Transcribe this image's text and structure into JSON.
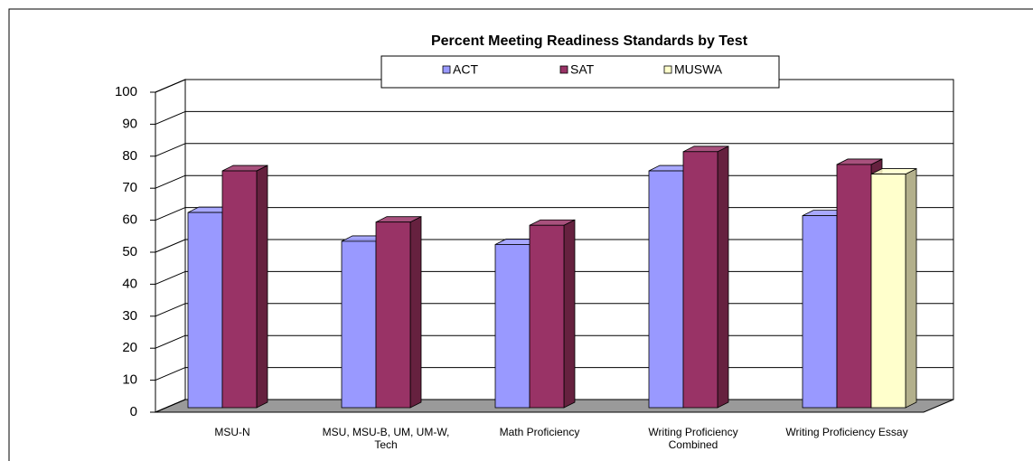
{
  "chart_data": {
    "type": "bar3d",
    "title": "Percent Meeting Readiness Standards by Test",
    "categories": [
      "MSU-N",
      "MSU, MSU-B, UM, UM-W, Tech",
      "Math Proficiency",
      "Writing Proficiency Combined",
      "Writing Proficiency Essay"
    ],
    "series": [
      {
        "name": "ACT",
        "color": "#9999ff",
        "side": "#6b6bcc",
        "values": [
          61,
          52,
          51,
          74,
          60
        ]
      },
      {
        "name": "SAT",
        "color": "#993366",
        "side": "#66213f",
        "values": [
          74,
          58,
          57,
          80,
          76
        ]
      },
      {
        "name": "MUSWA",
        "color": "#ffffcc",
        "side": "#b3b08c",
        "values": [
          null,
          null,
          null,
          null,
          73
        ]
      }
    ],
    "ylim": [
      0,
      100
    ],
    "yticks": [
      0,
      10,
      20,
      30,
      40,
      50,
      60,
      70,
      80,
      90,
      100
    ],
    "grid": true,
    "legend": "top"
  }
}
